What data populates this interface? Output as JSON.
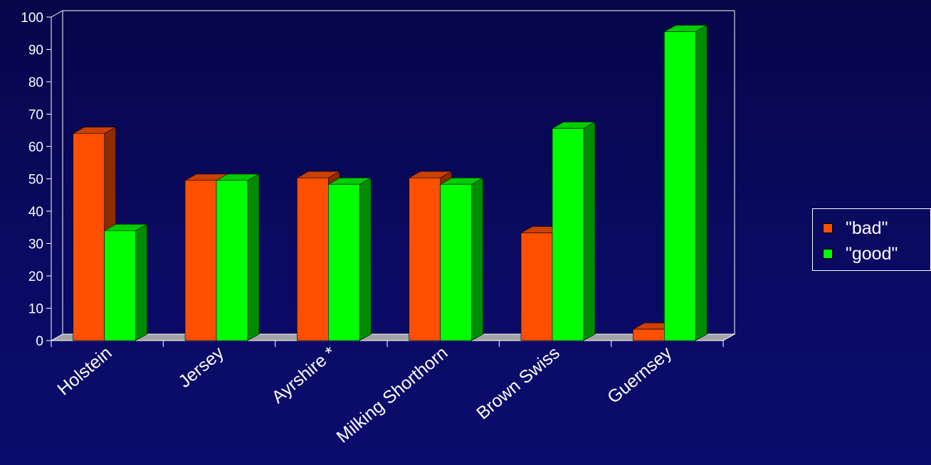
{
  "chart_data": {
    "type": "bar",
    "categories": [
      "Holstein",
      "Jersey",
      "Ayrshire *",
      "Milking Shorthorn",
      "Brown Swiss",
      "Guernsey"
    ],
    "series": [
      {
        "name": "\"bad\"",
        "values": [
          64,
          49.5,
          50.3,
          50.3,
          33.3,
          3.5
        ],
        "color": "#ff5000"
      },
      {
        "name": "\"good\"",
        "values": [
          34,
          49.5,
          48.3,
          48.3,
          65.6,
          95.5
        ],
        "color": "#00ff00"
      }
    ],
    "yticks": [
      "0",
      "10",
      "20",
      "30",
      "40",
      "50",
      "60",
      "70",
      "80",
      "90",
      "100"
    ],
    "ylim": [
      0,
      100
    ],
    "legend_position": "right",
    "bar_style": "3d"
  }
}
